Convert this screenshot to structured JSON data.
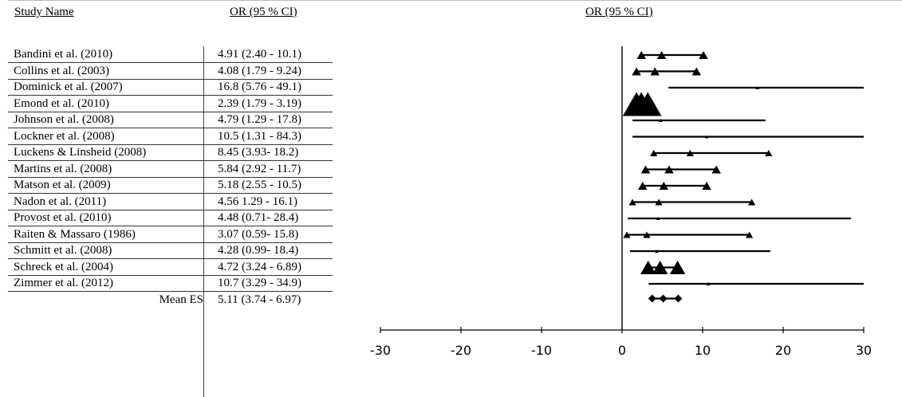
{
  "chart_data": {
    "type": "scatter",
    "title": "OR (95 % CI)",
    "headers": {
      "study": "Study Name",
      "ci": "OR (95 % CI)"
    },
    "xlim": [
      -30,
      30
    ],
    "xticks": [
      -30,
      -20,
      -10,
      0,
      10,
      20,
      30
    ],
    "xtick_labels": [
      "-30",
      "-20",
      "-10",
      "0",
      "10",
      "20",
      "30"
    ],
    "reference_line": 0,
    "studies": [
      {
        "name": "Bandini et al. (2010)",
        "ci_text": "4.91 (2.40 - 10.1)",
        "or": 4.91,
        "lo": 2.4,
        "hi": 10.1
      },
      {
        "name": "Collins et al. (2003)",
        "ci_text": "4.08 (1.79 - 9.24)",
        "or": 4.08,
        "lo": 1.79,
        "hi": 9.24
      },
      {
        "name": "Dominick et al. (2007)",
        "ci_text": "16.8 (5.76 - 49.1)",
        "or": 16.8,
        "lo": 5.76,
        "hi": 49.1
      },
      {
        "name": "Emond et al. (2010)",
        "ci_text": "2.39 (1.79 - 3.19)",
        "or": 2.39,
        "lo": 1.79,
        "hi": 3.19
      },
      {
        "name": "Johnson et al. (2008)",
        "ci_text": "4.79 (1.29 - 17.8)",
        "or": 4.79,
        "lo": 1.29,
        "hi": 17.8
      },
      {
        "name": "Lockner et al. (2008)",
        "ci_text": "10.5 (1.31 - 84.3)",
        "or": 10.5,
        "lo": 1.31,
        "hi": 84.3
      },
      {
        "name": "Luckens & Linsheid (2008)",
        "ci_text": "8.45 (3.93- 18.2)",
        "or": 8.45,
        "lo": 3.93,
        "hi": 18.2
      },
      {
        "name": "Martins et al. (2008)",
        "ci_text": "5.84 (2.92 - 11.7)",
        "or": 5.84,
        "lo": 2.92,
        "hi": 11.7
      },
      {
        "name": "Matson et al. (2009)",
        "ci_text": "5.18 (2.55 - 10.5)",
        "or": 5.18,
        "lo": 2.55,
        "hi": 10.5
      },
      {
        "name": "Nadon et al. (2011)",
        "ci_text": "4.56 1.29 - 16.1)",
        "or": 4.56,
        "lo": 1.29,
        "hi": 16.1
      },
      {
        "name": "Provost et al. (2010)",
        "ci_text": "4.48 (0.71- 28.4)",
        "or": 4.48,
        "lo": 0.71,
        "hi": 28.4
      },
      {
        "name": "Raiten & Massaro (1986)",
        "ci_text": "3.07 (0.59- 15.8)",
        "or": 3.07,
        "lo": 0.59,
        "hi": 15.8
      },
      {
        "name": "Schmitt et al. (2008)",
        "ci_text": "4.28 (0.99- 18.4)",
        "or": 4.28,
        "lo": 0.99,
        "hi": 18.4
      },
      {
        "name": "Schreck et al. (2004)",
        "ci_text": "4.72 (3.24 - 6.89)",
        "or": 4.72,
        "lo": 3.24,
        "hi": 6.89
      },
      {
        "name": "Zimmer et al. (2012)",
        "ci_text": "10.7 (3.29 - 34.9)",
        "or": 10.7,
        "lo": 3.29,
        "hi": 34.9
      }
    ],
    "summary": {
      "name": "Mean ES",
      "ci_text": "5.11 (3.74 - 6.97)",
      "or": 5.11,
      "lo": 3.74,
      "hi": 6.97
    }
  }
}
